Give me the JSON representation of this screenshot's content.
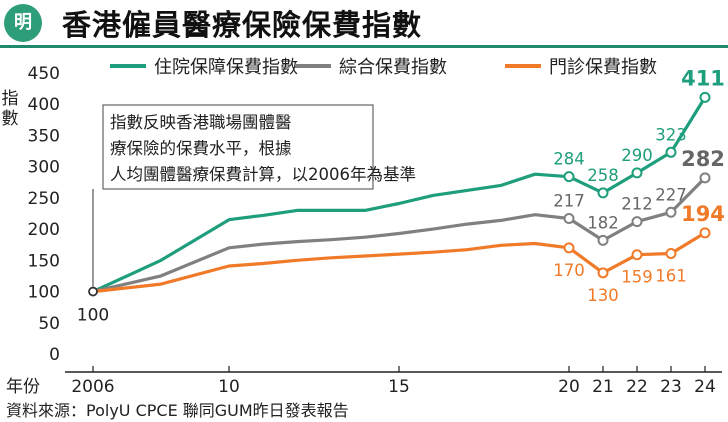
{
  "header": {
    "logo_text": "明",
    "title": "香港僱員醫療保險保費指數",
    "accent_color": "#1f8a6b"
  },
  "footer": {
    "source": "資料來源：PolyU CPCE 聯同GUM昨日發表報告"
  },
  "chart_data": {
    "type": "line",
    "title": "香港僱員醫療保險保費指數",
    "ylabel": "指數",
    "xlabel": "年份",
    "ylim": [
      0,
      450
    ],
    "yticks": [
      0,
      50,
      100,
      150,
      200,
      250,
      300,
      350,
      400,
      450
    ],
    "xlim": [
      2006,
      2024
    ],
    "xticks": [
      {
        "year": 2006,
        "label": "2006"
      },
      {
        "year": 2010,
        "label": "10"
      },
      {
        "year": 2015,
        "label": "15"
      },
      {
        "year": 2020,
        "label": "20"
      },
      {
        "year": 2021,
        "label": "21"
      },
      {
        "year": 2022,
        "label": "22"
      },
      {
        "year": 2023,
        "label": "23"
      },
      {
        "year": 2024,
        "label": "24"
      }
    ],
    "grid": false,
    "legend_position": "top",
    "annotation": "指數反映香港職場團體醫療保險的保費水平，根據人均團體醫療保費計算，以2006年為基準",
    "series": [
      {
        "name": "住院保障保費指數",
        "color": "#1e9e7c",
        "label_color": "#1e9e7c",
        "x": [
          2006,
          2008,
          2010,
          2011,
          2012,
          2013,
          2014,
          2015,
          2016,
          2017,
          2018,
          2019,
          2020,
          2021,
          2022,
          2023,
          2024
        ],
        "values": [
          100,
          150,
          215,
          222,
          230,
          230,
          230,
          241,
          254,
          262,
          270,
          288,
          284,
          258,
          290,
          323,
          411
        ],
        "labels": [
          {
            "year": 2020,
            "value": 284,
            "text": "284",
            "pos": "above"
          },
          {
            "year": 2021,
            "value": 258,
            "text": "258",
            "pos": "above"
          },
          {
            "year": 2022,
            "value": 290,
            "text": "290",
            "pos": "above"
          },
          {
            "year": 2023,
            "value": 323,
            "text": "323",
            "pos": "above"
          },
          {
            "year": 2024,
            "value": 411,
            "text": "411",
            "pos": "above",
            "bold": true
          }
        ]
      },
      {
        "name": "綜合保費指數",
        "color": "#808080",
        "label_color": "#666666",
        "x": [
          2006,
          2008,
          2010,
          2011,
          2012,
          2013,
          2014,
          2015,
          2016,
          2017,
          2018,
          2019,
          2020,
          2021,
          2022,
          2023,
          2024
        ],
        "values": [
          100,
          125,
          170,
          176,
          180,
          183,
          187,
          193,
          200,
          208,
          214,
          223,
          217,
          182,
          212,
          227,
          282
        ],
        "labels": [
          {
            "year": 2020,
            "value": 217,
            "text": "217",
            "pos": "above"
          },
          {
            "year": 2021,
            "value": 182,
            "text": "182",
            "pos": "above"
          },
          {
            "year": 2022,
            "value": 212,
            "text": "212",
            "pos": "above"
          },
          {
            "year": 2023,
            "value": 227,
            "text": "227",
            "pos": "above"
          },
          {
            "year": 2024,
            "value": 282,
            "text": "282",
            "pos": "above",
            "bold": true
          }
        ]
      },
      {
        "name": "門診保費指數",
        "color": "#f07a28",
        "label_color": "#f07a28",
        "x": [
          2006,
          2008,
          2010,
          2011,
          2012,
          2013,
          2014,
          2015,
          2016,
          2017,
          2018,
          2019,
          2020,
          2021,
          2022,
          2023,
          2024
        ],
        "values": [
          100,
          112,
          141,
          145,
          150,
          154,
          157,
          160,
          163,
          167,
          174,
          177,
          170,
          130,
          159,
          161,
          194
        ],
        "labels": [
          {
            "year": 2020,
            "value": 170,
            "text": "170",
            "pos": "below"
          },
          {
            "year": 2021,
            "value": 130,
            "text": "130",
            "pos": "below"
          },
          {
            "year": 2022,
            "value": 159,
            "text": "159",
            "pos": "below"
          },
          {
            "year": 2023,
            "value": 161,
            "text": "161",
            "pos": "below"
          },
          {
            "year": 2024,
            "value": 194,
            "text": "194",
            "pos": "above",
            "bold": true
          }
        ]
      }
    ],
    "base_label": {
      "year": 2006,
      "value": 100,
      "text": "100"
    }
  }
}
